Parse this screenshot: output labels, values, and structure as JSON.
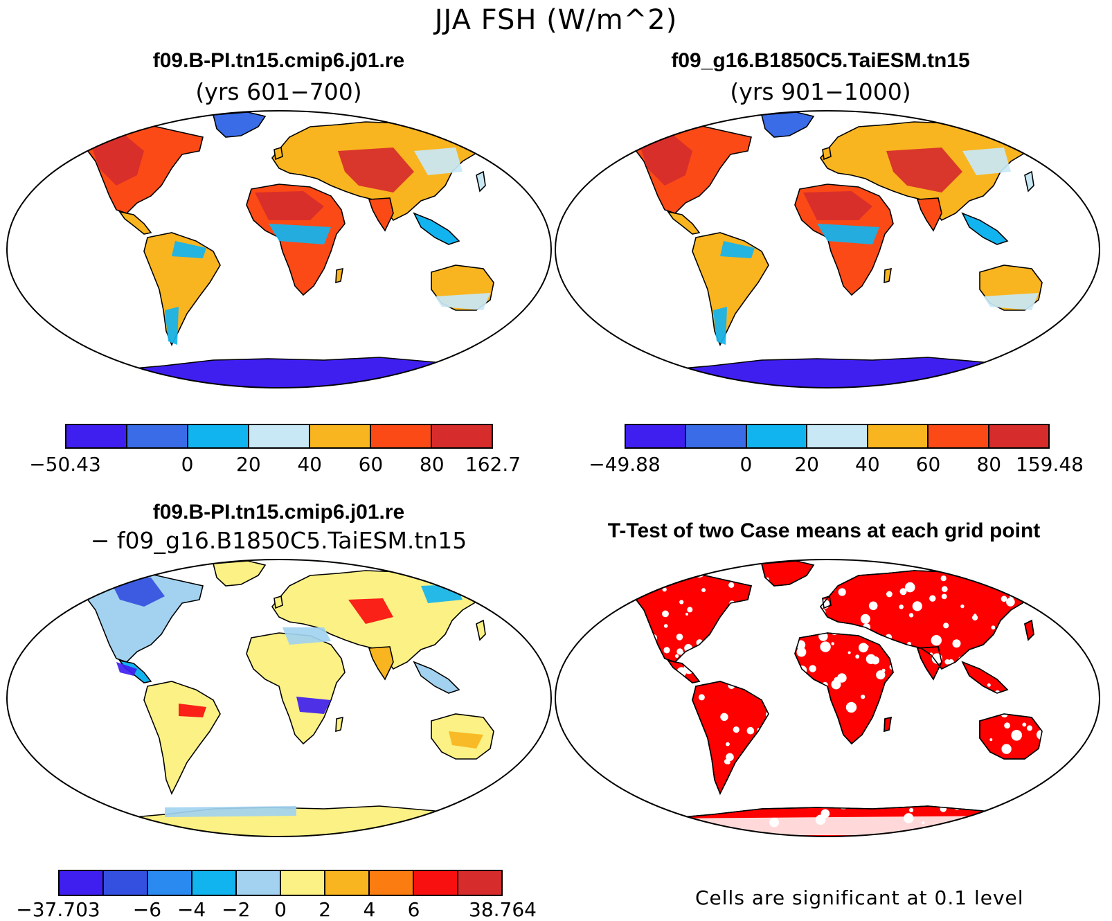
{
  "figure": {
    "title": "JJA FSH (W/m^2)"
  },
  "panels": [
    {
      "id": "case1",
      "title_line1": "f09.B-PI.tn15.cmip6.j01.re",
      "title_line2": "(yrs 601−700)",
      "colorbar": {
        "colors": [
          "#3f1ff0",
          "#3a6ce8",
          "#12b4f0",
          "#c8e8f6",
          "#f9b51f",
          "#fb4a16",
          "#d62c2c"
        ],
        "tick_labels": [
          "−50.43",
          "",
          "0",
          "20",
          "40",
          "60",
          "80",
          "162.7"
        ]
      }
    },
    {
      "id": "case2",
      "title_line1": "f09_g16.B1850C5.TaiESM.tn15",
      "title_line2": "(yrs 901−1000)",
      "colorbar": {
        "colors": [
          "#3f1ff0",
          "#3a6ce8",
          "#12b4f0",
          "#c8e8f6",
          "#f9b51f",
          "#fb4a16",
          "#d62c2c"
        ],
        "tick_labels": [
          "−49.88",
          "",
          "0",
          "20",
          "40",
          "60",
          "80",
          "159.48"
        ]
      }
    },
    {
      "id": "difference",
      "title_line1": "f09.B-PI.tn15.cmip6.j01.re",
      "title_line2": "− f09_g16.B1850C5.TaiESM.tn15",
      "colorbar": {
        "colors": [
          "#3f1ff0",
          "#3350e0",
          "#2b8af0",
          "#12b4f0",
          "#a2d2f0",
          "#fbf184",
          "#f9b51f",
          "#fb7c10",
          "#f80f0f",
          "#d62c2c"
        ],
        "tick_labels": [
          "−37.703",
          "",
          "−6",
          "−4",
          "−2",
          "0",
          "2",
          "4",
          "6",
          "",
          "38.764"
        ]
      }
    },
    {
      "id": "ttest",
      "title_line1": "T-Test of two Case means at each grid point",
      "note": "Cells are significant at 0.1 level",
      "significant_color": "#ff0000"
    }
  ]
}
